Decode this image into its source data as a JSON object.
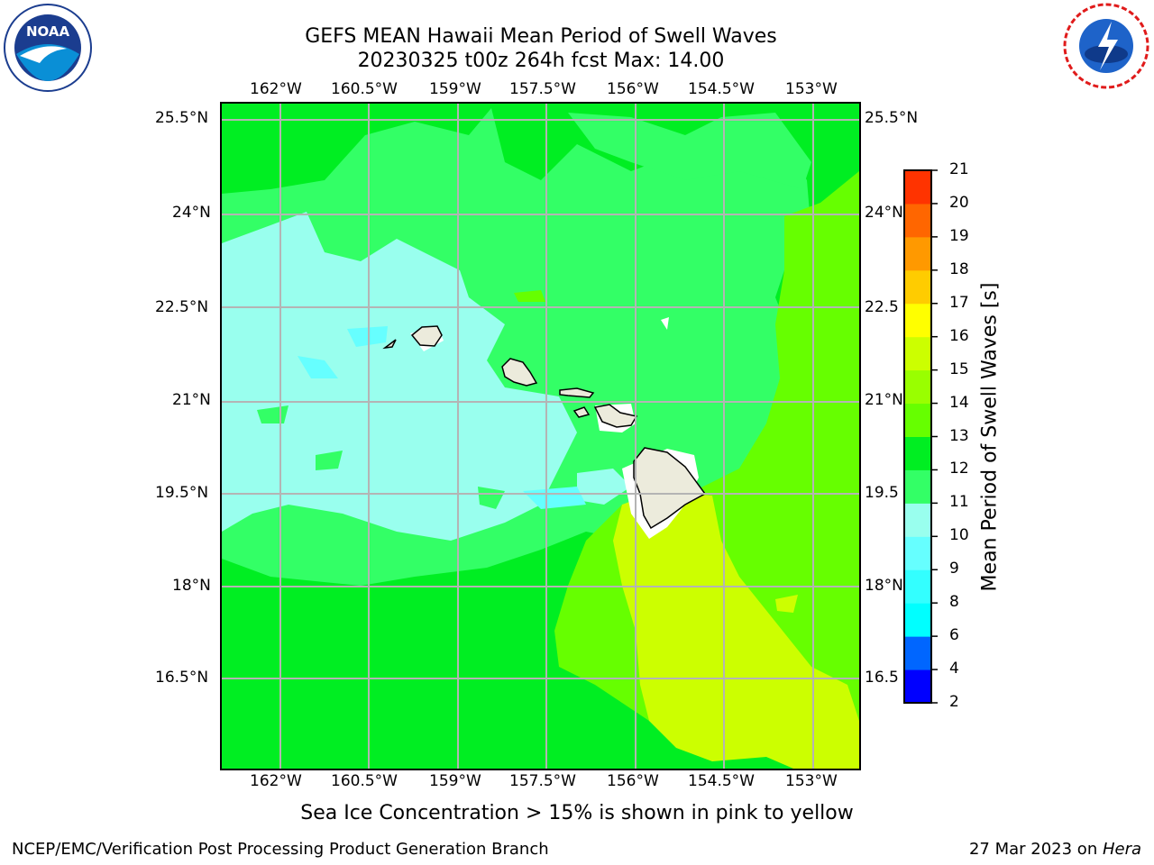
{
  "header": {
    "title_line1": "GEFS MEAN Hawaii Mean Period of Swell Waves",
    "title_line2": "20230325 t00z 264h fcst   Max: 14.00"
  },
  "logos": {
    "left": "NOAA",
    "right": "NATIONAL WEATHER SERVICE"
  },
  "map": {
    "lon_labels": [
      "162°W",
      "160.5°W",
      "159°W",
      "157.5°W",
      "156°W",
      "154.5°W",
      "153°W"
    ],
    "lat_labels": [
      "25.5°N",
      "24°N",
      "22.5°N",
      "21°N",
      "19.5°N",
      "18°N",
      "16.5°N"
    ],
    "lat_labels_right": [
      "25.5°N",
      "24°N",
      "22.5",
      "21°N",
      "19.5",
      "18°N",
      "16.5"
    ]
  },
  "colorbar": {
    "title": "Mean Period of Swell Waves [s]",
    "levels": [
      "2",
      "4",
      "6",
      "8",
      "9",
      "10",
      "11",
      "12",
      "13",
      "14",
      "15",
      "16",
      "17",
      "18",
      "19",
      "20",
      "21"
    ],
    "colors": [
      "#0000ff",
      "#0066ff",
      "#00ffff",
      "#33ffff",
      "#66ffff",
      "#99ffee",
      "#33ff66",
      "#00ee22",
      "#66ff00",
      "#99ff00",
      "#ccff00",
      "#ffff00",
      "#ffcc00",
      "#ff9900",
      "#ff6600",
      "#ff3300",
      "#ff0000"
    ]
  },
  "caption": "Sea Ice Concentration > 15% is shown in pink to yellow",
  "footer": {
    "left": "NCEP/EMC/Verification Post Processing Product Generation Branch",
    "right_date": "27 Mar 2023 on ",
    "right_host": "Hera"
  }
}
